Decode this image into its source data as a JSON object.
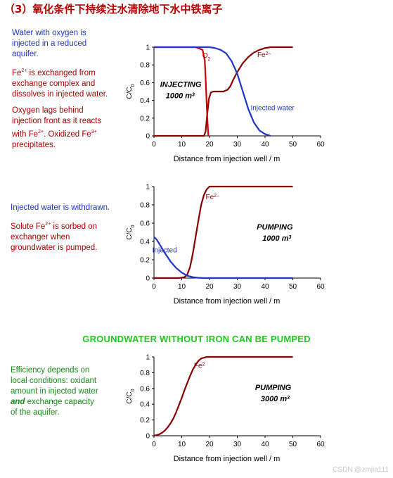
{
  "heading": "（3）氧化条件下持续注水清除地下水中铁离子",
  "notes": {
    "n1": "Water with oxygen is injected in a reduced aquifer.",
    "n2_pre": "Fe",
    "n2_sup": "2+",
    "n2_post": " is exchanged from exchange complex and dissolves in injected water.",
    "n3_pre": "Oxygen lags behind injection front as it reacts with Fe",
    "n3_sup1": "2+",
    "n3_mid": ". Oxidized Fe",
    "n3_sup2": "3+",
    "n3_post": " precipitates.",
    "n4": "Injected water is withdrawn.",
    "n5_pre": "Solute Fe",
    "n5_sup": "2+",
    "n5_post": " is sorbed on exchanger when groundwater is pumped.",
    "n6_a": "Efficiency depends on local conditions: oxidant amount in injected water ",
    "n6_b": "and",
    "n6_c": " exchange capacity of the aquifer."
  },
  "banner": "GROUNDWATER WITHOUT IRON CAN BE PUMPED",
  "credit": "CSDN @zmjia111",
  "colors": {
    "fe": "#8b0000",
    "injected": "#1f35c9",
    "o2": "#cc0000",
    "axis": "#000000"
  },
  "chart_data": [
    {
      "type": "line",
      "xlabel": "Distance from injection well / m",
      "ylabel": "C/C",
      "ylabel_sub": "0",
      "xlim": [
        0,
        60
      ],
      "ylim": [
        0,
        1
      ],
      "xticks": [
        "0",
        "10",
        "20",
        "30",
        "40",
        "50",
        "60"
      ],
      "yticks": [
        "0",
        "0.2",
        "0.4",
        "0.6",
        "0.8",
        "1"
      ],
      "annotation": [
        "INJECTING",
        "1000 m"
      ],
      "annotation_sup": "3",
      "series": [
        {
          "name": "Fe2-",
          "label": "Fe",
          "label_sup": "2–",
          "color": "#8b0000",
          "x": [
            0,
            18,
            18.6,
            19.2,
            19.8,
            20.5,
            21.5,
            23,
            25,
            26.5,
            27.5,
            28.5,
            30,
            32,
            34,
            36,
            38,
            40,
            42,
            44,
            46,
            50
          ],
          "y": [
            0,
            0,
            0.05,
            0.25,
            0.42,
            0.49,
            0.5,
            0.5,
            0.5,
            0.52,
            0.56,
            0.63,
            0.72,
            0.82,
            0.89,
            0.94,
            0.97,
            0.99,
            1,
            1,
            1,
            1
          ]
        },
        {
          "name": "O2",
          "label": "O",
          "label_sub": "2",
          "color": "#cc0000",
          "x": [
            0,
            10,
            15,
            17.5,
            18.3,
            18.8,
            19.2,
            19.6
          ],
          "y": [
            1,
            1,
            1,
            0.97,
            0.85,
            0.5,
            0.2,
            0
          ]
        },
        {
          "name": "Injected water",
          "label": "Injected water",
          "color": "#1f35c9",
          "x": [
            0,
            10,
            15,
            20,
            22,
            24,
            26,
            28,
            30,
            32,
            34,
            36,
            38,
            40,
            42
          ],
          "y": [
            1,
            1,
            1,
            1,
            0.99,
            0.97,
            0.93,
            0.84,
            0.7,
            0.5,
            0.3,
            0.15,
            0.06,
            0.02,
            0
          ]
        }
      ]
    },
    {
      "type": "line",
      "xlabel": "Distance from injection well / m",
      "ylabel": "C/C",
      "ylabel_sub": "0",
      "xlim": [
        0,
        60
      ],
      "ylim": [
        0,
        1
      ],
      "xticks": [
        "0",
        "10",
        "20",
        "30",
        "40",
        "50",
        "60"
      ],
      "yticks": [
        "0",
        "0.2",
        "0.4",
        "0.6",
        "0.8",
        "1"
      ],
      "annotation": [
        "PUMPING",
        "1000 m"
      ],
      "annotation_sup": "3",
      "series": [
        {
          "name": "Fe2-",
          "label": "Fe",
          "label_sup": "2–",
          "color": "#8b0000",
          "x": [
            0,
            9,
            11,
            12,
            13,
            14,
            15,
            16,
            17,
            18,
            19,
            20,
            22,
            25,
            30,
            40,
            50
          ],
          "y": [
            0,
            0,
            0.01,
            0.04,
            0.12,
            0.27,
            0.45,
            0.63,
            0.8,
            0.91,
            0.97,
            1,
            1,
            1,
            1,
            1,
            1
          ]
        },
        {
          "name": "Injected",
          "label": "Injected",
          "color": "#1f35c9",
          "x": [
            0,
            1,
            2,
            4,
            6,
            8,
            10,
            12,
            14,
            16,
            18,
            20,
            25,
            30,
            40,
            50
          ],
          "y": [
            0.45,
            0.42,
            0.37,
            0.27,
            0.18,
            0.11,
            0.06,
            0.025,
            0.01,
            0.003,
            0,
            0,
            0,
            0,
            0,
            0
          ]
        }
      ]
    },
    {
      "type": "line",
      "xlabel": "Distance from injection well / m",
      "ylabel": "C/C",
      "ylabel_sub": "0",
      "xlim": [
        0,
        60
      ],
      "ylim": [
        0,
        1
      ],
      "xticks": [
        "0",
        "10",
        "20",
        "30",
        "40",
        "50",
        "60"
      ],
      "yticks": [
        "0",
        "0.2",
        "0.4",
        "0.6",
        "0.8",
        "1"
      ],
      "annotation": [
        "PUMPING",
        "3000 m"
      ],
      "annotation_sup": "3",
      "series": [
        {
          "name": "Fe2",
          "label": "Fe",
          "label_sup": "2",
          "color": "#8b0000",
          "x": [
            0,
            1,
            2,
            3,
            4,
            5,
            6,
            7,
            8,
            9,
            10,
            11,
            12,
            13,
            14,
            15,
            16,
            17,
            18,
            19,
            20,
            22,
            25,
            30,
            40,
            50
          ],
          "y": [
            0,
            0.01,
            0.02,
            0.04,
            0.07,
            0.11,
            0.16,
            0.22,
            0.3,
            0.39,
            0.48,
            0.58,
            0.67,
            0.76,
            0.84,
            0.9,
            0.95,
            0.98,
            0.99,
            1,
            1,
            1,
            1,
            1,
            1,
            1
          ]
        }
      ]
    }
  ]
}
